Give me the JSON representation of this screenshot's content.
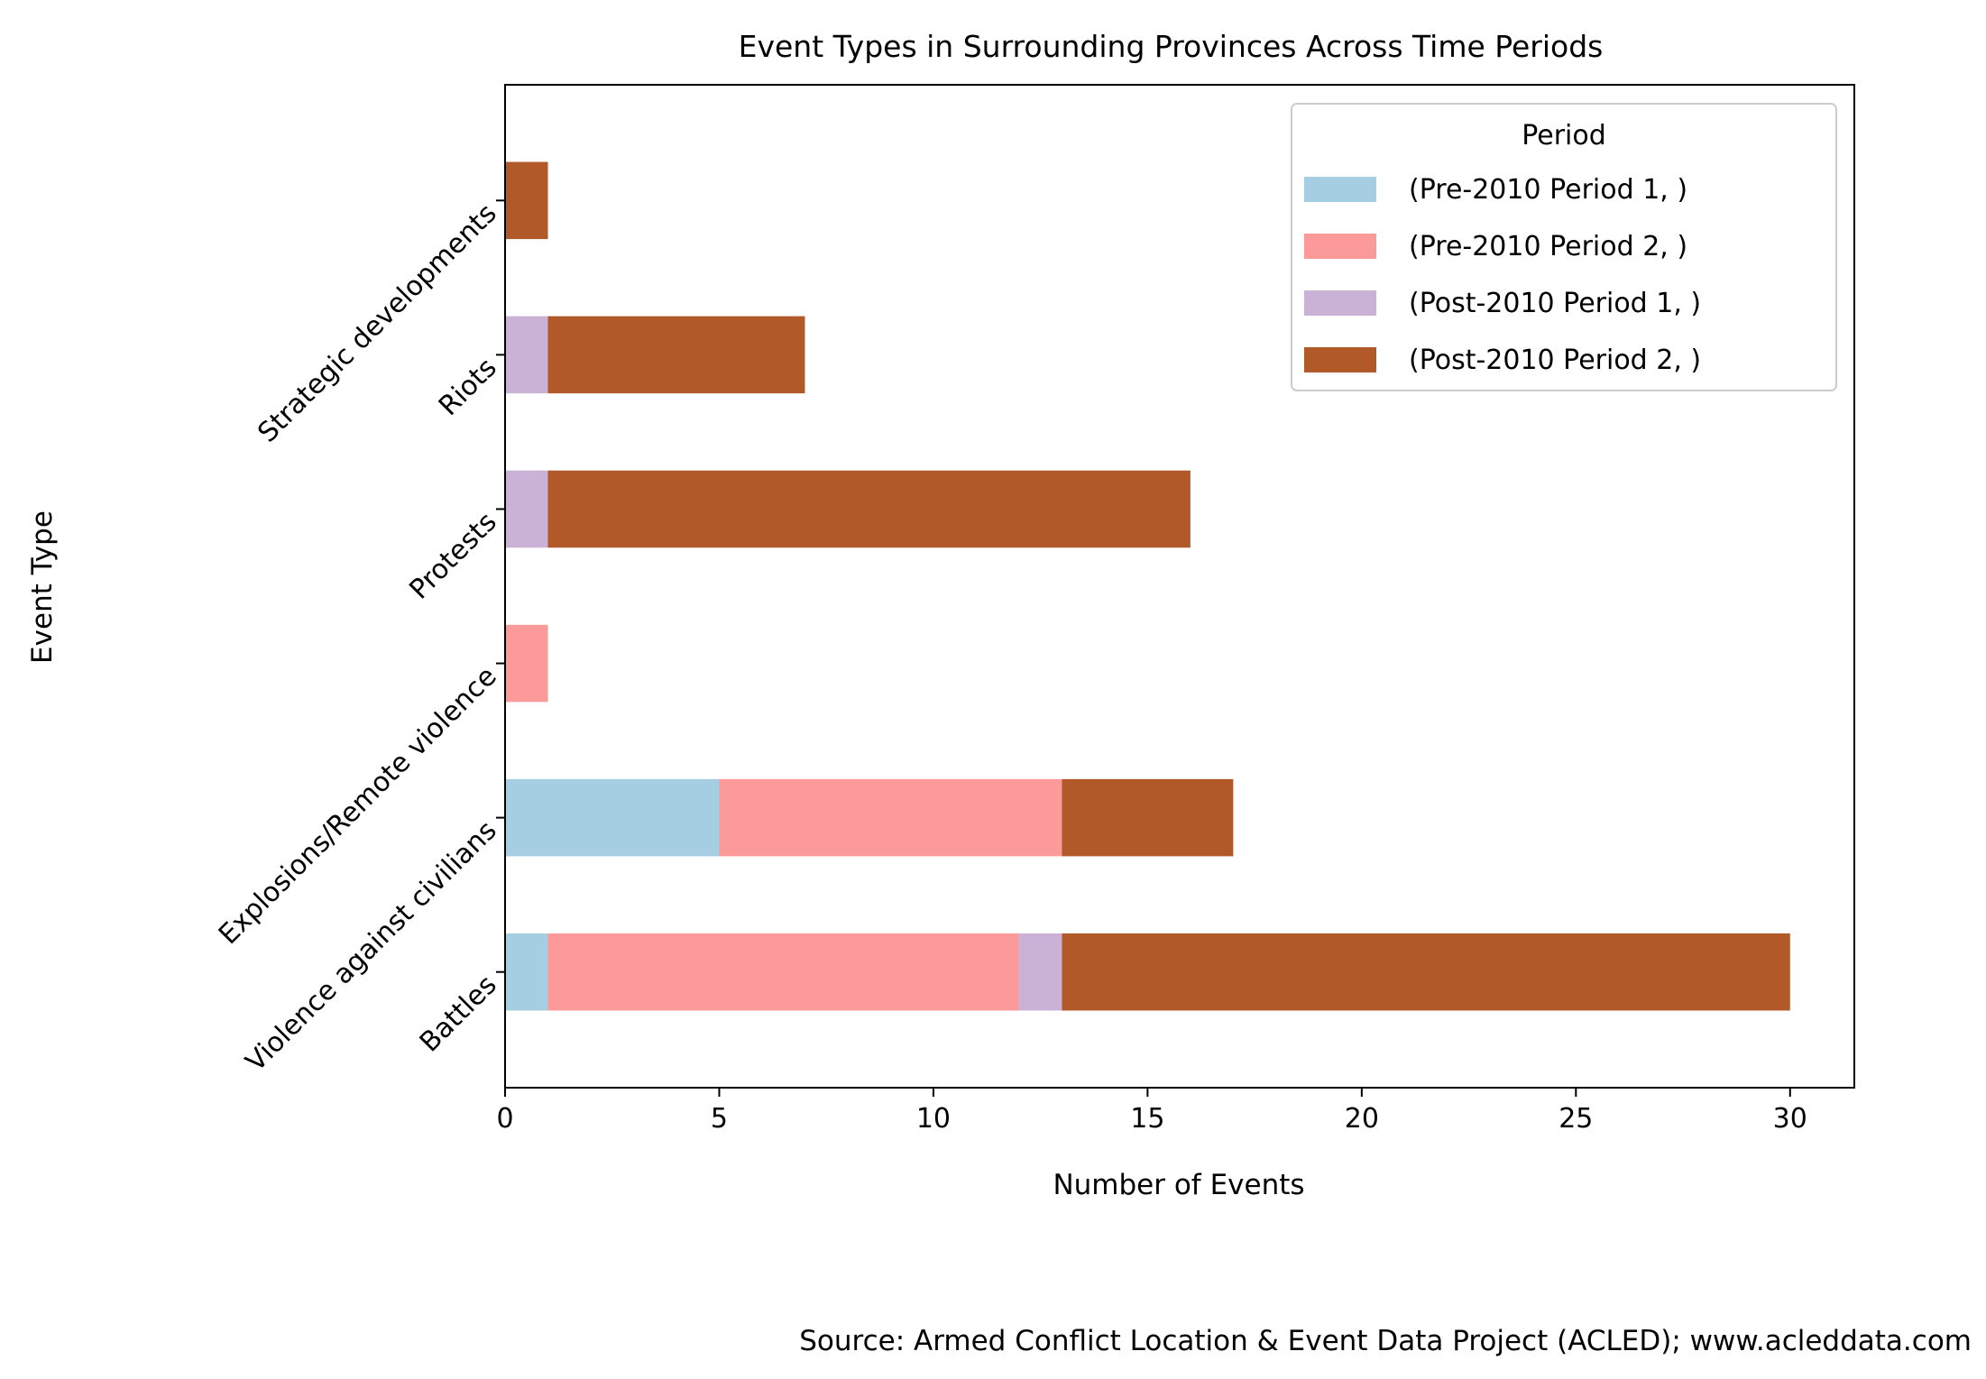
{
  "chart_data": {
    "type": "bar",
    "orientation": "horizontal",
    "stacked": true,
    "title": "Event Types in Surrounding Provinces Across Time Periods",
    "xlabel": "Number of Events",
    "ylabel": "Event Type",
    "xlim": [
      0,
      31.5
    ],
    "xticks": [
      0,
      5,
      10,
      15,
      20,
      25,
      30
    ],
    "grid": false,
    "categories": [
      "Battles",
      "Violence against civilians",
      "Explosions/Remote violence",
      "Protests",
      "Riots",
      "Strategic developments"
    ],
    "series": [
      {
        "name": "(Pre-2010 Period 1, )",
        "color": "#a6cee3",
        "values": [
          1,
          5,
          0,
          0,
          0,
          0
        ]
      },
      {
        "name": "(Pre-2010 Period 2, )",
        "color": "#fb9a99",
        "values": [
          11,
          8,
          1,
          0,
          0,
          0
        ]
      },
      {
        "name": "(Post-2010 Period 1, )",
        "color": "#cab2d6",
        "values": [
          1,
          0,
          0,
          1,
          1,
          0
        ]
      },
      {
        "name": "(Post-2010 Period 2, )",
        "color": "#b15928",
        "values": [
          17,
          4,
          0,
          15,
          6,
          1
        ]
      }
    ],
    "legend": {
      "title": "Period",
      "placement": "top-right"
    },
    "source_note": "Source: Armed Conflict Location & Event Data Project (ACLED); www.acleddata.com"
  }
}
